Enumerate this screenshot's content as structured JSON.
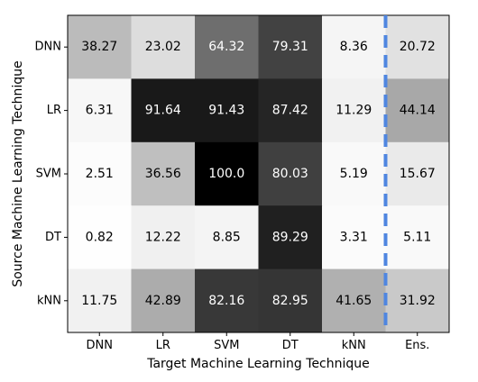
{
  "chart_data": {
    "type": "heatmap",
    "xlabel": "Target Machine Learning Technique",
    "ylabel": "Source Machine Learning Technique",
    "x_categories": [
      "DNN",
      "LR",
      "SVM",
      "DT",
      "kNN",
      "Ens."
    ],
    "y_categories": [
      "DNN",
      "LR",
      "SVM",
      "DT",
      "kNN"
    ],
    "values": [
      [
        38.27,
        23.02,
        64.32,
        79.31,
        8.36,
        20.72
      ],
      [
        6.31,
        91.64,
        91.43,
        87.42,
        11.29,
        44.14
      ],
      [
        2.51,
        36.56,
        100.0,
        80.03,
        5.19,
        15.67
      ],
      [
        0.82,
        12.22,
        8.85,
        89.29,
        3.31,
        5.11
      ],
      [
        11.75,
        42.89,
        82.16,
        82.95,
        41.65,
        31.92
      ]
    ],
    "value_labels": [
      [
        "38.27",
        "23.02",
        "64.32",
        "79.31",
        "8.36",
        "20.72"
      ],
      [
        "6.31",
        "91.64",
        "91.43",
        "87.42",
        "11.29",
        "44.14"
      ],
      [
        "2.51",
        "36.56",
        "100.0",
        "80.03",
        "5.19",
        "15.67"
      ],
      [
        "0.82",
        "12.22",
        "8.85",
        "89.29",
        "3.31",
        "5.11"
      ],
      [
        "11.75",
        "42.89",
        "82.16",
        "82.95",
        "41.65",
        "31.92"
      ]
    ],
    "color_range": [
      0,
      100
    ],
    "colormap": "greys",
    "separator_line_color": "#4f86e0",
    "separator_line_style": "dashed",
    "separator_between": [
      "kNN",
      "Ens."
    ]
  }
}
